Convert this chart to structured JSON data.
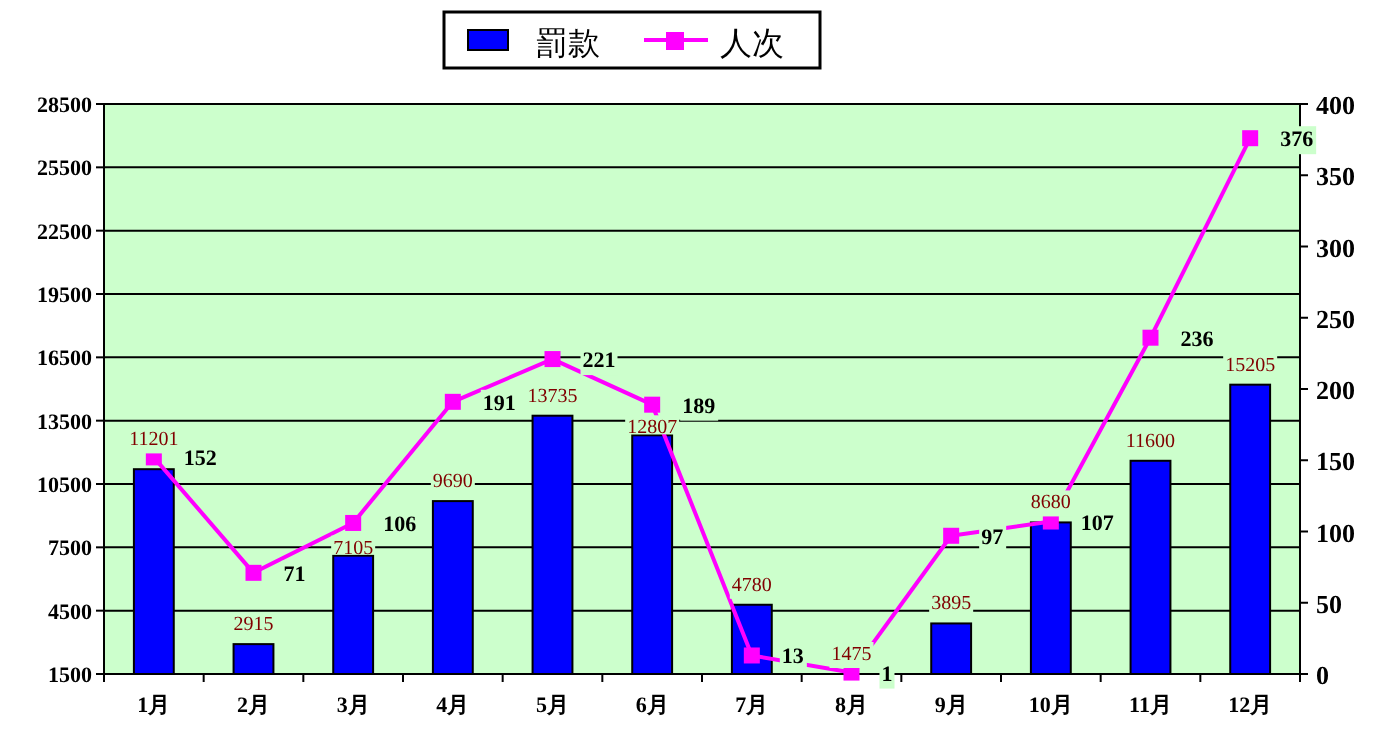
{
  "chart_data": {
    "type": "bar",
    "categories": [
      "1月",
      "2月",
      "3月",
      "4月",
      "5月",
      "6月",
      "7月",
      "8月",
      "9月",
      "10月",
      "11月",
      "12月"
    ],
    "series": [
      {
        "name": "罰款",
        "color": "#0000ff",
        "values": [
          11201,
          2915,
          7105,
          9690,
          13735,
          12807,
          4780,
          null,
          3895,
          8680,
          11600,
          15205
        ],
        "value_labels": [
          "11201",
          "2915",
          "7105",
          "9690",
          "13735",
          "12807",
          "4780",
          "1475",
          "3895",
          "8680",
          "11600",
          "15205"
        ]
      },
      {
        "name": "人次",
        "type": "line",
        "axis": "y2",
        "color": "#ff00ff",
        "values": [
          152,
          71,
          106,
          191,
          221,
          189,
          13,
          1,
          97,
          107,
          236,
          376
        ]
      }
    ],
    "ylim": [
      1500,
      28500
    ],
    "yticks": [
      1500,
      4500,
      7500,
      10500,
      13500,
      16500,
      19500,
      22500,
      25500,
      28500
    ],
    "y2lim": [
      0,
      400
    ],
    "y2ticks": [
      0,
      50,
      100,
      150,
      200,
      250,
      300,
      350,
      400
    ],
    "grid": "y",
    "legend": "top",
    "marker": "square",
    "data_labels": true
  }
}
